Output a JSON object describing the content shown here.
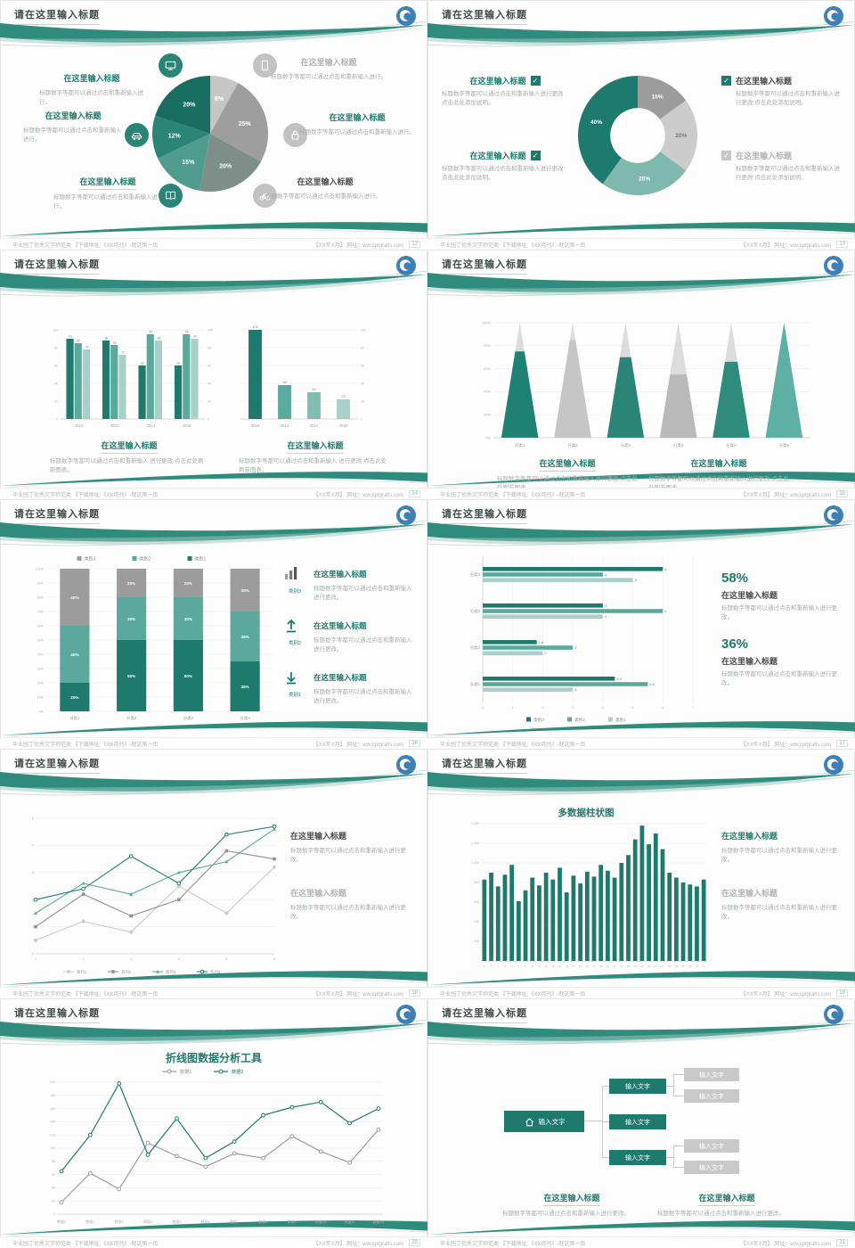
{
  "footer": {
    "left": "毕业园丁优秀文学师范类 【下载地址:《XX月刊》-就这第一页",
    "right": "【XX年X月】 网址：ww.pptgratis.com"
  },
  "theme": {
    "teal_dark": "#1d7a6c",
    "teal": "#2a8577",
    "teal_mid": "#5aa99c",
    "teal_light": "#a9cfc9",
    "gray": "#9c9c9c",
    "gray_light": "#c9c9c9",
    "logo_blue": "#3e7fb6"
  },
  "slides": {
    "s1": {
      "page": "12",
      "title": "请在这里输入标题",
      "items": [
        {
          "heading": "在这里输入标题",
          "body": "标题数字等都可以通过点击和重新输入进行。"
        },
        {
          "heading": "在这里输入标题",
          "body": "标题数字等都可以通过点击和重新输入进行。"
        },
        {
          "heading": "在这里输入标题",
          "body": "标题数字等都可以通过点击和重新输入进行。"
        },
        {
          "heading": "在这里输入标题",
          "body": "标题数字等都可以通过点击和重新输入进行。"
        },
        {
          "heading": "在这里输入标题",
          "body": "标题数字等都可以通过点击和重新输入进行。"
        },
        {
          "heading": "在这里输入标题",
          "body": "标题数字等都可以通过点击和重新输入进行。"
        }
      ],
      "chart": {
        "type": "pie",
        "values": [
          8,
          25,
          20,
          15,
          12,
          20
        ],
        "labels": [
          "8%",
          "25%",
          "20%",
          "15%",
          "12%",
          "20%"
        ],
        "colors": [
          "#c6c6c6",
          "#9e9e9e",
          "#7e8e89",
          "#4f9c8f",
          "#2a8577",
          "#176e60"
        ]
      }
    },
    "s2": {
      "page": "13",
      "title": "请在这里输入标题",
      "left": [
        {
          "heading": "在这里输入标题",
          "body": "标题数字等都可以通过点击和重新输入进行更改 点击此处添加说明。"
        },
        {
          "heading": "在这里输入标题",
          "body": "标题数字等都可以通过点击和重新输入进行更改 点击此处添加说明。"
        }
      ],
      "right": [
        {
          "heading": "在这里输入标题",
          "body": "标题数字等都可以通过点击和重新输入进行更改 点击此处添加说明。"
        },
        {
          "heading": "在这里输入标题",
          "body": "标题数字等都可以通过点击和重新输入进行更改 点击此处添加说明。"
        }
      ],
      "chart": {
        "type": "donut",
        "values": [
          15,
          20,
          25,
          40
        ],
        "labels": [
          "15%",
          "20%",
          "25%",
          "40%"
        ],
        "colors": [
          "#9c9c9c",
          "#cccccc",
          "#7fb8ad",
          "#1d7a6c"
        ],
        "labelColors": [
          "#ffffff",
          "#777777",
          "#ffffff",
          "#ffffff"
        ]
      }
    },
    "s3": {
      "page": "14",
      "title": "请在这里输入标题",
      "blocks": [
        {
          "heading": "在这里输入标题",
          "body": "标题数字等都可以通过点击和重新输入 进行更改 点击此处刷新图表。"
        },
        {
          "heading": "在这里输入标题",
          "body": "标题数字等都可以通过点击和重新输入 进行更改 点击此处刷新图表。"
        }
      ],
      "chartL": {
        "type": "groupbar",
        "categories": [
          "2010",
          "2012",
          "2014",
          "2016"
        ],
        "ymax": 100,
        "ystep": 20,
        "rightAxis": true,
        "valueLabels": true,
        "series": [
          {
            "name": "系列1",
            "color": "#1d7a6c",
            "values": [
              90,
              88,
              60,
              60
            ]
          },
          {
            "name": "系列2",
            "color": "#5aa99c",
            "values": [
              85,
              83,
              95,
              95
            ]
          },
          {
            "name": "系列3",
            "color": "#a9cfc9",
            "values": [
              78,
              72,
              88,
              90
            ]
          }
        ]
      },
      "chartR": {
        "type": "bar",
        "categories": [
          "2016",
          "2014",
          "2012",
          "2010"
        ],
        "ymax": 100,
        "ystep": 20,
        "values": [
          100,
          38,
          30,
          22
        ],
        "colors": [
          "#1d7a6c",
          "#5aa99c",
          "#7fbcb1",
          "#a9cfc9"
        ]
      }
    },
    "s4": {
      "page": "15",
      "title": "请在这里输入标题",
      "blocks": [
        {
          "heading": "在这里输入标题",
          "body": "标题数字等都可以通过点击和重新输入进行更改 点击此处刷新图表。"
        },
        {
          "heading": "在这里输入标题",
          "body": "标题数字等都可以通过点击和重新输入进行更改 点击此处刷新图表。"
        }
      ],
      "chart": {
        "type": "pyramid",
        "categories": [
          "分类1",
          "分类2",
          "分类3",
          "分类4",
          "分类5",
          "分类6"
        ],
        "yticks": [
          "0%",
          "20%",
          "40%",
          "60%",
          "80%",
          "100%"
        ],
        "tip": "#dcdcdc",
        "items": [
          {
            "color": "#1f8172",
            "fill": 0.75
          },
          {
            "color": "#c6c6c6",
            "fill": 0.85
          },
          {
            "color": "#2a8577",
            "fill": 0.7
          },
          {
            "color": "#b9b9b9",
            "fill": 0.55
          },
          {
            "color": "#2f8b7c",
            "fill": 0.66
          },
          {
            "color": "#5fb0a4",
            "fill": 1.0
          }
        ]
      }
    },
    "s5": {
      "page": "16",
      "title": "请在这里输入标题",
      "rows": [
        {
          "label": "类别3",
          "heading": "在这里输入标题",
          "body": "标题数字等都可以通过点击和重新输入进行更改。"
        },
        {
          "label": "类别2",
          "heading": "在这里输入标题",
          "body": "标题数字等都可以通过点击和重新输入进行更改。"
        },
        {
          "label": "类别1",
          "heading": "在这里输入标题",
          "body": "标题数字等都可以通过点击和重新输入进行更改。"
        }
      ],
      "chart": {
        "type": "stackbar",
        "categories": [
          "分类1",
          "分类2",
          "分类3",
          "分类4"
        ],
        "legend": [
          {
            "name": "类别3",
            "color": "#9c9c9c"
          },
          {
            "name": "类别2",
            "color": "#5aa99c"
          },
          {
            "name": "类别1",
            "color": "#1d7a6c"
          }
        ],
        "series": [
          {
            "name": "类别1",
            "color": "#1d7a6c",
            "values": [
              20,
              50,
              50,
              35
            ]
          },
          {
            "name": "类别2",
            "color": "#5aa99c",
            "values": [
              40,
              30,
              30,
              35
            ]
          },
          {
            "name": "类别3",
            "color": "#9c9c9c",
            "values": [
              40,
              20,
              20,
              30
            ]
          }
        ]
      }
    },
    "s6": {
      "page": "17",
      "title": "请在这里输入标题",
      "stats": [
        {
          "value": "58%",
          "heading": "在这里输入标题",
          "body": "标题数字等都可以通过点击和重新输入进行更改。"
        },
        {
          "value": "36%",
          "heading": "在这里输入标题",
          "body": "标题数字等都可以通过点击和重新输入进行更改。"
        }
      ],
      "chart": {
        "type": "hbar",
        "categories": [
          "分类4",
          "分类3",
          "分类2",
          "分类1"
        ],
        "xmax": 7,
        "legend": [
          {
            "name": "类别3",
            "color": "#1d7a6c"
          },
          {
            "name": "类别2",
            "color": "#5aa99c"
          },
          {
            "name": "类别1",
            "color": "#a9cfc9"
          }
        ],
        "series": [
          {
            "name": "类别3",
            "color": "#1d7a6c",
            "values": [
              6,
              4,
              1.8,
              4.4
            ]
          },
          {
            "name": "类别2",
            "color": "#5aa99c",
            "values": [
              4,
              6,
              3,
              5.5
            ]
          },
          {
            "name": "类别1",
            "color": "#a9cfc9",
            "values": [
              5,
              4,
              2,
              3
            ]
          }
        ]
      }
    },
    "s7": {
      "page": "18",
      "title": "请在这里输入标题",
      "blocks": [
        {
          "heading": "在这里输入标题",
          "body": "标题数字等都可以通过点击和重新输入进行更改。"
        },
        {
          "heading": "在这里输入标题",
          "body": "标题数字等都可以通过点击和重新输入进行更改。"
        }
      ],
      "chart": {
        "type": "line",
        "x": [
          "1",
          "2",
          "3",
          "4",
          "5",
          "6"
        ],
        "ymax": 5,
        "series": [
          {
            "name": "系列1",
            "color": "#c9c9c9",
            "marker": "d",
            "values": [
              0.5,
              1.2,
              0.8,
              2.5,
              1.5,
              3.2
            ]
          },
          {
            "name": "系列2",
            "color": "#8f8f8f",
            "marker": "s",
            "values": [
              1,
              2.2,
              1.4,
              2,
              3.8,
              3.5
            ]
          },
          {
            "name": "系列3",
            "color": "#5aa99c",
            "marker": "t",
            "values": [
              1.5,
              2.6,
              2.2,
              3,
              3.4,
              4.6
            ]
          },
          {
            "name": "系列4",
            "color": "#1d7a6c",
            "marker": "o",
            "values": [
              2,
              2.4,
              3.6,
              2.6,
              4.4,
              4.7
            ]
          }
        ]
      }
    },
    "s8": {
      "page": "19",
      "title": "请在这里输入标题",
      "chart_title": "多数据柱状图",
      "blocks": [
        {
          "heading": "在这里输入标题",
          "body": "标题数字等都可以通过点击和重新输入进行更改。"
        },
        {
          "heading": "在这里输入标题",
          "body": "标题数字等都可以通过点击和重新输入进行更改。"
        }
      ],
      "chart": {
        "type": "columns",
        "ymax": 1400,
        "ystep": 200,
        "color": "#1d7a6c",
        "values": [
          830,
          900,
          760,
          880,
          980,
          610,
          720,
          850,
          770,
          900,
          830,
          950,
          700,
          870,
          790,
          910,
          860,
          980,
          920,
          850,
          1000,
          1080,
          1240,
          1380,
          1190,
          1300,
          1140,
          900,
          850,
          800,
          780,
          760,
          830
        ]
      }
    },
    "s9": {
      "page": "20",
      "title": "请在这里输入标题",
      "chart_title": "折线图数据分析工具",
      "chart": {
        "type": "line2",
        "ymax": 200,
        "ystep": 20,
        "x": [
          "数据1",
          "数据2",
          "数据3",
          "数据4",
          "数据5",
          "数据6",
          "数据7",
          "数据8",
          "数据9",
          "数据10",
          "数据11",
          "数据12"
        ],
        "series": [
          {
            "name": "数据1",
            "color": "#9c9c9c",
            "values": [
              18,
              62,
              38,
              108,
              88,
              72,
              92,
              85,
              118,
              95,
              78,
              128
            ]
          },
          {
            "name": "数据2",
            "color": "#1d7a6c",
            "values": [
              65,
              120,
              198,
              90,
              145,
              85,
              110,
              150,
              162,
              170,
              138,
              160
            ]
          }
        ]
      }
    },
    "s10": {
      "page": "21",
      "title": "请在这里输入标题",
      "diagram": {
        "root": "输入文字",
        "nodes": [
          "输入文字",
          "输入文字",
          "输入文字"
        ],
        "leaves": [
          "输入文字",
          "输入文字",
          "输入文字",
          "输入文字"
        ]
      },
      "blocks": [
        {
          "heading": "在这里输入标题",
          "body": "标题数字等都可以通过点击和重新输入进行更改。"
        },
        {
          "heading": "在这里输入标题",
          "body": "标题数字等都可以通过点击和重新输入进行更改。"
        }
      ]
    }
  }
}
